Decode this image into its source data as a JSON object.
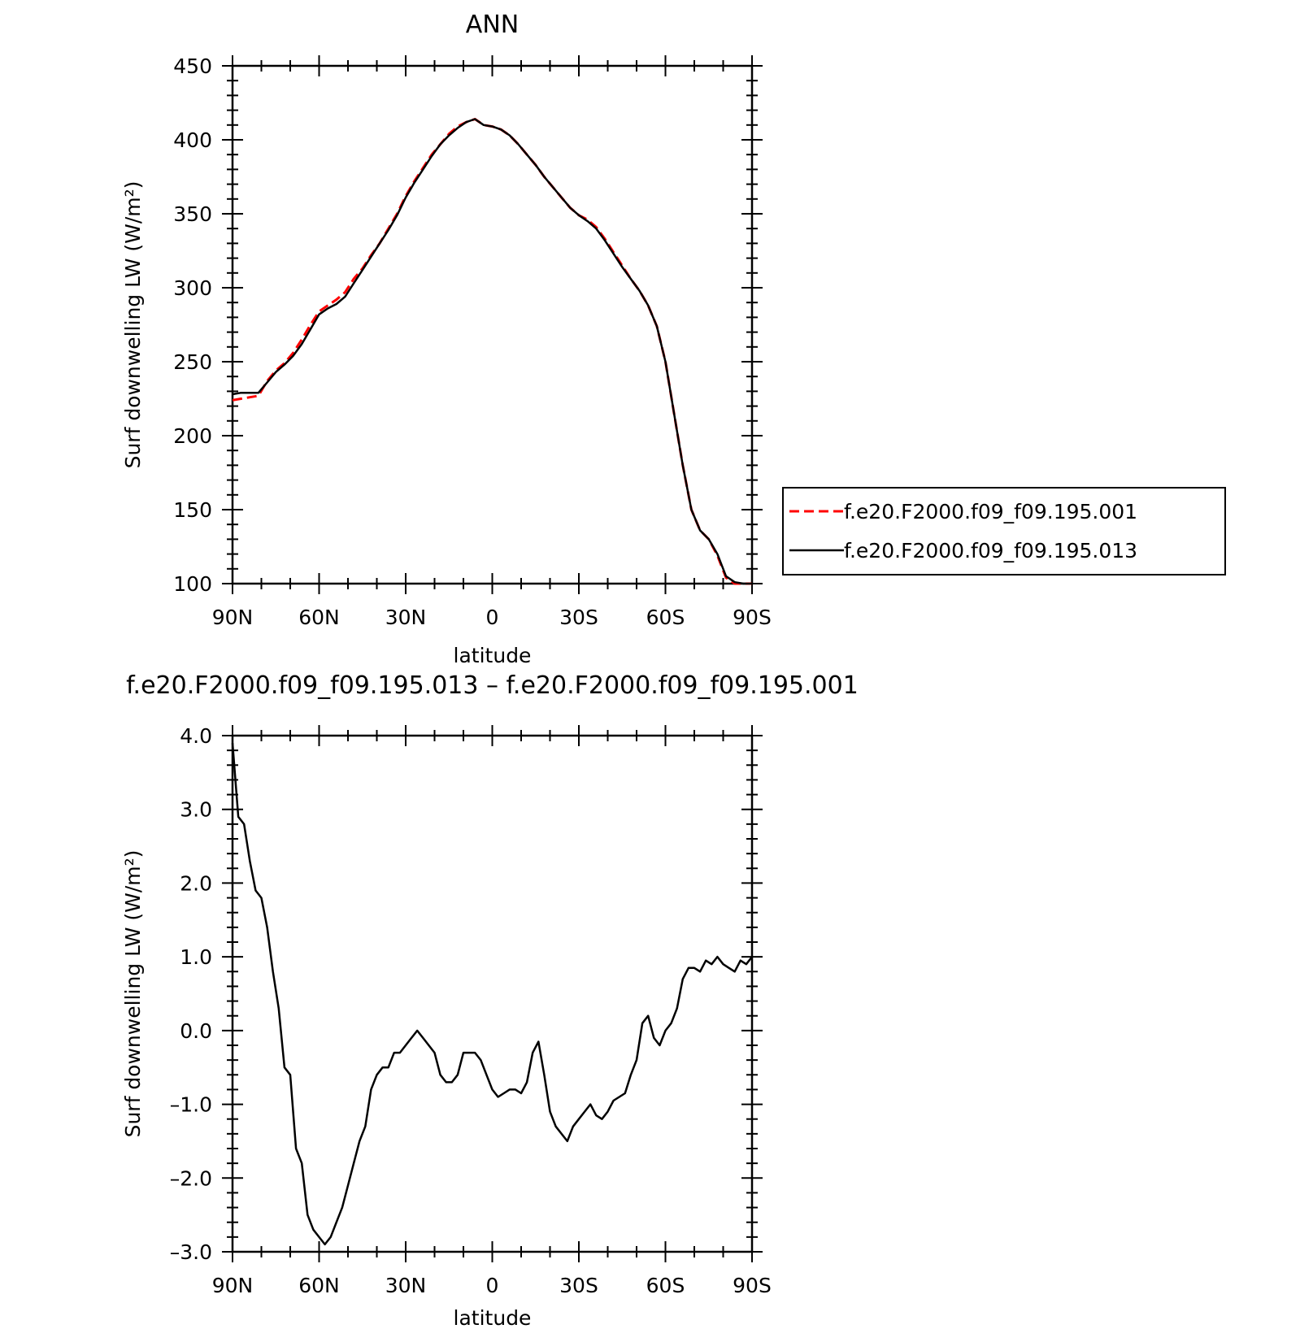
{
  "colors": {
    "background": "#ffffff",
    "axis": "#000000",
    "series_red": "#ff0000",
    "series_black": "#000000"
  },
  "chart_data": [
    {
      "type": "line",
      "title": "ANN",
      "xlabel": "latitude",
      "ylabel": "Surf downwelling LW (W/m²)",
      "xlim": [
        90,
        -90
      ],
      "ylim": [
        100,
        450
      ],
      "x_ticks": [
        90,
        60,
        30,
        0,
        -30,
        -60,
        -90
      ],
      "x_tick_labels": [
        "90N",
        "60N",
        "30N",
        "0",
        "30S",
        "60S",
        "90S"
      ],
      "y_ticks": [
        100,
        150,
        200,
        250,
        300,
        350,
        400,
        450
      ],
      "y_tick_labels": [
        "100",
        "150",
        "200",
        "250",
        "300",
        "350",
        "400",
        "450"
      ],
      "legend": {
        "position": "right",
        "entries": [
          {
            "label": "f.e20.F2000.f09_f09.195.001",
            "color": "#ff0000",
            "dash": "dashed"
          },
          {
            "label": "f.e20.F2000.f09_f09.195.013",
            "color": "#000000",
            "dash": "solid"
          }
        ]
      },
      "series": [
        {
          "name": "f.e20.F2000.f09_f09.195.001",
          "color": "#ff0000",
          "dash": "dashed",
          "x": [
            90,
            87,
            84,
            81,
            78,
            75,
            72,
            69,
            66,
            63,
            60,
            57,
            54,
            51,
            48,
            45,
            42,
            39,
            36,
            33,
            30,
            27,
            24,
            21,
            18,
            15,
            12,
            9,
            6,
            3,
            0,
            -3,
            -6,
            -9,
            -12,
            -15,
            -18,
            -21,
            -24,
            -27,
            -30,
            -33,
            -36,
            -39,
            -42,
            -45,
            -48,
            -51,
            -54,
            -57,
            -60,
            -63,
            -66,
            -69,
            -72,
            -75,
            -78,
            -81,
            -84,
            -87,
            -90
          ],
          "y": [
            224,
            225,
            226,
            227,
            237,
            244,
            249,
            256,
            265,
            275,
            284,
            288,
            292,
            297,
            306,
            313,
            322,
            330,
            340,
            350,
            362,
            372,
            381,
            390,
            397,
            404,
            409,
            412,
            414,
            410,
            409,
            407,
            403,
            397,
            390,
            383,
            375,
            368,
            361,
            354,
            349,
            346,
            341,
            333,
            324,
            315,
            306,
            298,
            288,
            274,
            250,
            215,
            180,
            150,
            136,
            130,
            119,
            104,
            100,
            100,
            100
          ]
        },
        {
          "name": "f.e20.F2000.f09_f09.195.013",
          "color": "#000000",
          "dash": "solid",
          "x": [
            90,
            87,
            84,
            81,
            78,
            75,
            72,
            69,
            66,
            63,
            60,
            57,
            54,
            51,
            48,
            45,
            42,
            39,
            36,
            33,
            30,
            27,
            24,
            21,
            18,
            15,
            12,
            9,
            6,
            3,
            0,
            -3,
            -6,
            -9,
            -12,
            -15,
            -18,
            -21,
            -24,
            -27,
            -30,
            -33,
            -36,
            -39,
            -42,
            -45,
            -48,
            -51,
            -54,
            -57,
            -60,
            -63,
            -66,
            -69,
            -72,
            -75,
            -78,
            -81,
            -84,
            -87,
            -90
          ],
          "y": [
            228,
            229,
            229,
            229,
            236,
            243,
            248,
            254,
            262,
            272,
            282,
            286,
            289,
            294,
            303,
            312,
            321,
            330,
            339,
            349,
            361,
            371,
            380,
            389,
            397,
            403,
            408,
            412,
            414,
            410,
            409,
            407,
            403,
            397,
            390,
            383,
            375,
            368,
            361,
            354,
            349,
            345,
            340,
            332,
            323,
            314,
            306,
            298,
            288,
            274,
            250,
            215,
            180,
            150,
            136,
            130,
            120,
            105,
            101,
            100,
            100
          ]
        }
      ]
    },
    {
      "type": "line",
      "title": "f.e20.F2000.f09_f09.195.013 – f.e20.F2000.f09_f09.195.001",
      "xlabel": "latitude",
      "ylabel": "Surf downwelling LW (W/m²)",
      "xlim": [
        90,
        -90
      ],
      "ylim": [
        -3.0,
        4.0
      ],
      "x_ticks": [
        90,
        60,
        30,
        0,
        -30,
        -60,
        -90
      ],
      "x_tick_labels": [
        "90N",
        "60N",
        "30N",
        "0",
        "30S",
        "60S",
        "90S"
      ],
      "y_ticks": [
        -3.0,
        -2.0,
        -1.0,
        0.0,
        1.0,
        2.0,
        3.0,
        4.0
      ],
      "y_tick_labels": [
        "–3.0",
        "–2.0",
        "–1.0",
        "0.0",
        "1.0",
        "2.0",
        "3.0",
        "4.0"
      ],
      "series": [
        {
          "color": "#000000",
          "dash": "solid",
          "x": [
            90,
            88,
            86,
            84,
            82,
            80,
            78,
            76,
            74,
            72,
            70,
            68,
            66,
            64,
            62,
            60,
            58,
            56,
            54,
            52,
            50,
            48,
            46,
            44,
            42,
            40,
            38,
            36,
            34,
            32,
            30,
            28,
            26,
            24,
            22,
            20,
            18,
            16,
            14,
            12,
            10,
            8,
            6,
            4,
            2,
            0,
            -2,
            -4,
            -6,
            -8,
            -10,
            -12,
            -14,
            -16,
            -18,
            -20,
            -22,
            -24,
            -26,
            -28,
            -30,
            -32,
            -34,
            -36,
            -38,
            -40,
            -42,
            -44,
            -46,
            -48,
            -50,
            -52,
            -54,
            -56,
            -58,
            -60,
            -62,
            -64,
            -66,
            -68,
            -70,
            -72,
            -74,
            -76,
            -78,
            -80,
            -82,
            -84,
            -86,
            -88,
            -90
          ],
          "y": [
            3.9,
            2.9,
            2.8,
            2.3,
            1.9,
            1.8,
            1.4,
            0.8,
            0.3,
            -0.5,
            -0.6,
            -1.6,
            -1.8,
            -2.5,
            -2.7,
            -2.8,
            -2.9,
            -2.8,
            -2.6,
            -2.4,
            -2.1,
            -1.8,
            -1.5,
            -1.3,
            -0.8,
            -0.6,
            -0.5,
            -0.5,
            -0.3,
            -0.3,
            -0.2,
            -0.1,
            0.0,
            -0.1,
            -0.2,
            -0.3,
            -0.6,
            -0.7,
            -0.7,
            -0.6,
            -0.3,
            -0.3,
            -0.3,
            -0.4,
            -0.6,
            -0.8,
            -0.9,
            -0.85,
            -0.8,
            -0.8,
            -0.85,
            -0.7,
            -0.3,
            -0.15,
            -0.6,
            -1.1,
            -1.3,
            -1.4,
            -1.5,
            -1.3,
            -1.2,
            -1.1,
            -1.0,
            -1.15,
            -1.2,
            -1.1,
            -0.95,
            -0.9,
            -0.85,
            -0.6,
            -0.4,
            0.1,
            0.2,
            -0.1,
            -0.2,
            0.0,
            0.1,
            0.3,
            0.7,
            0.85,
            0.85,
            0.8,
            0.95,
            0.9,
            1.0,
            0.9,
            0.85,
            0.8,
            0.95,
            0.9,
            1.0
          ]
        }
      ]
    }
  ]
}
